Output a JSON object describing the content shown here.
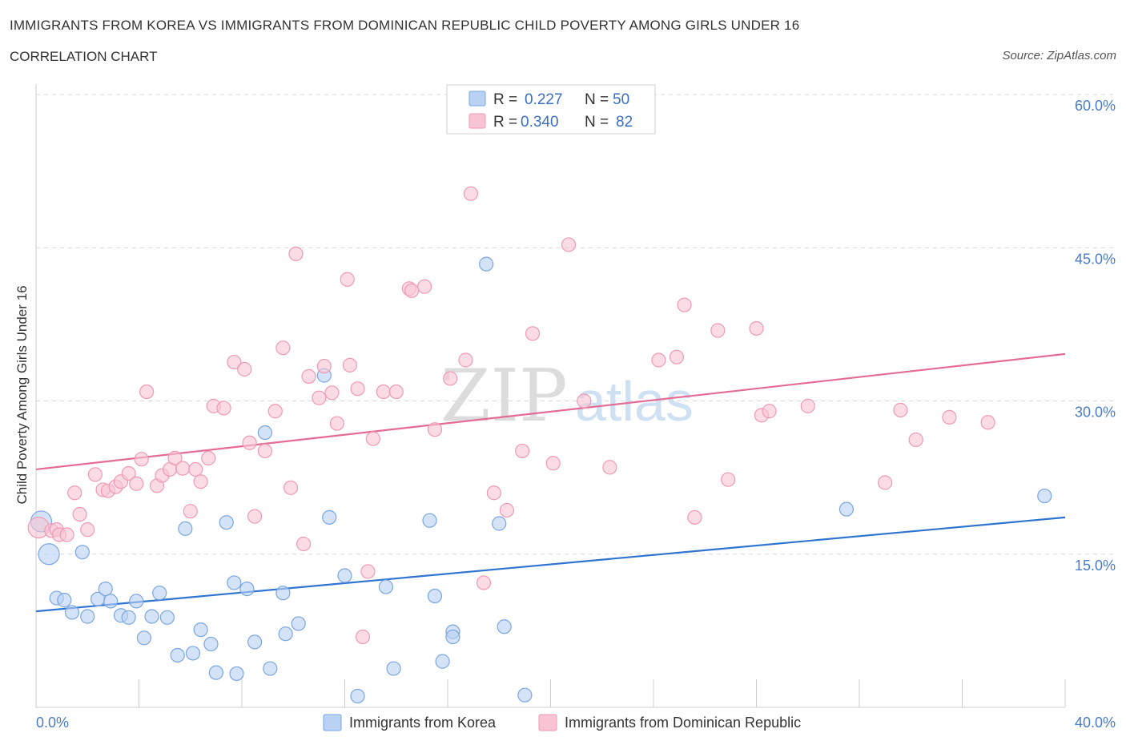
{
  "title": "IMMIGRANTS FROM KOREA VS IMMIGRANTS FROM DOMINICAN REPUBLIC CHILD POVERTY AMONG GIRLS UNDER 16",
  "subtitle": "CORRELATION CHART",
  "source": "Source: ZipAtlas.com",
  "watermark": {
    "zip": "ZIP",
    "atlas": "atlas"
  },
  "legend_top": {
    "r_label": "R =",
    "n_label": "N =",
    "series": [
      {
        "name": "Immigrants from Korea",
        "r": "0.227",
        "n": "50"
      },
      {
        "name": "Immigrants from Dominican Republic",
        "r": "0.340",
        "n": "82"
      }
    ]
  },
  "colors": {
    "korea_fill": "#b9d1f3",
    "korea_stroke": "#7aa6e0",
    "korea_line": "#2f74d0",
    "dr_fill": "#f8c4d3",
    "dr_stroke": "#ef9ab4",
    "dr_line": "#e46b96",
    "grid": "#d9d9d9",
    "axis_label": "#4a7cc7"
  },
  "chart_data": {
    "type": "scatter",
    "title": "IMMIGRANTS FROM KOREA VS IMMIGRANTS FROM DOMINICAN REPUBLIC CHILD POVERTY AMONG GIRLS UNDER 16",
    "ylabel": "Child Poverty Among Girls Under 16",
    "xlim": [
      0,
      40
    ],
    "ylim": [
      0,
      60
    ],
    "x_tick_labels": [
      "0.0%",
      "40.0%"
    ],
    "y_ticks": [
      {
        "value": 15,
        "label": "15.0%"
      },
      {
        "value": 30,
        "label": "30.0%"
      },
      {
        "value": 45,
        "label": "45.0%"
      },
      {
        "value": 60,
        "label": "60.0%"
      }
    ],
    "grid": true,
    "legend_position": "top-center",
    "series": [
      {
        "name": "Immigrants from Korea",
        "trend": {
          "x": [
            0,
            40
          ],
          "y": [
            9.4,
            18.6
          ]
        },
        "points": [
          {
            "x": 0.2,
            "y": 18.2,
            "big": true
          },
          {
            "x": 0.5,
            "y": 15.0,
            "big": true
          },
          {
            "x": 0.8,
            "y": 10.7
          },
          {
            "x": 1.1,
            "y": 10.5
          },
          {
            "x": 1.4,
            "y": 9.3
          },
          {
            "x": 1.8,
            "y": 15.2
          },
          {
            "x": 2.0,
            "y": 8.9
          },
          {
            "x": 2.4,
            "y": 10.6
          },
          {
            "x": 2.7,
            "y": 11.6
          },
          {
            "x": 2.9,
            "y": 10.4
          },
          {
            "x": 3.3,
            "y": 9.0
          },
          {
            "x": 3.6,
            "y": 8.8
          },
          {
            "x": 3.9,
            "y": 10.4
          },
          {
            "x": 4.2,
            "y": 6.8
          },
          {
            "x": 4.5,
            "y": 8.9
          },
          {
            "x": 4.8,
            "y": 11.2
          },
          {
            "x": 5.1,
            "y": 8.8
          },
          {
            "x": 5.5,
            "y": 5.1
          },
          {
            "x": 5.8,
            "y": 17.5
          },
          {
            "x": 6.1,
            "y": 5.3
          },
          {
            "x": 6.4,
            "y": 7.6
          },
          {
            "x": 6.8,
            "y": 6.2
          },
          {
            "x": 7.0,
            "y": 3.4
          },
          {
            "x": 7.4,
            "y": 18.1
          },
          {
            "x": 7.7,
            "y": 12.2
          },
          {
            "x": 7.8,
            "y": 3.3
          },
          {
            "x": 8.2,
            "y": 11.6
          },
          {
            "x": 8.5,
            "y": 6.4
          },
          {
            "x": 8.9,
            "y": 26.9
          },
          {
            "x": 9.1,
            "y": 3.8
          },
          {
            "x": 9.6,
            "y": 11.2
          },
          {
            "x": 9.7,
            "y": 7.2
          },
          {
            "x": 10.2,
            "y": 8.2
          },
          {
            "x": 11.2,
            "y": 32.5
          },
          {
            "x": 11.4,
            "y": 18.6
          },
          {
            "x": 12.0,
            "y": 12.9
          },
          {
            "x": 12.5,
            "y": 1.1
          },
          {
            "x": 13.6,
            "y": 11.8
          },
          {
            "x": 13.9,
            "y": 3.8
          },
          {
            "x": 15.3,
            "y": 18.3
          },
          {
            "x": 15.5,
            "y": 10.9
          },
          {
            "x": 15.8,
            "y": 4.5
          },
          {
            "x": 16.2,
            "y": 7.4
          },
          {
            "x": 16.2,
            "y": 6.9
          },
          {
            "x": 17.5,
            "y": 43.4
          },
          {
            "x": 18.0,
            "y": 18.0
          },
          {
            "x": 18.2,
            "y": 7.9
          },
          {
            "x": 19.0,
            "y": 1.2
          },
          {
            "x": 31.5,
            "y": 19.4
          },
          {
            "x": 39.2,
            "y": 20.7
          }
        ]
      },
      {
        "name": "Immigrants from Dominican Republic",
        "trend": {
          "x": [
            0,
            40
          ],
          "y": [
            23.3,
            34.6
          ]
        },
        "points": [
          {
            "x": 0.1,
            "y": 17.6,
            "big": true
          },
          {
            "x": 0.6,
            "y": 17.3
          },
          {
            "x": 0.8,
            "y": 17.4
          },
          {
            "x": 0.9,
            "y": 16.9
          },
          {
            "x": 1.2,
            "y": 16.9
          },
          {
            "x": 1.5,
            "y": 21.0
          },
          {
            "x": 1.7,
            "y": 18.9
          },
          {
            "x": 2.0,
            "y": 17.4
          },
          {
            "x": 2.3,
            "y": 22.8
          },
          {
            "x": 2.6,
            "y": 21.3
          },
          {
            "x": 2.8,
            "y": 21.2
          },
          {
            "x": 3.1,
            "y": 21.6
          },
          {
            "x": 3.3,
            "y": 22.1
          },
          {
            "x": 3.6,
            "y": 22.9
          },
          {
            "x": 3.9,
            "y": 21.9
          },
          {
            "x": 4.1,
            "y": 24.3
          },
          {
            "x": 4.3,
            "y": 30.9
          },
          {
            "x": 4.7,
            "y": 21.7
          },
          {
            "x": 4.9,
            "y": 22.7
          },
          {
            "x": 5.2,
            "y": 23.3
          },
          {
            "x": 5.4,
            "y": 24.4
          },
          {
            "x": 5.7,
            "y": 23.4
          },
          {
            "x": 6.0,
            "y": 19.2
          },
          {
            "x": 6.2,
            "y": 23.3
          },
          {
            "x": 6.4,
            "y": 22.1
          },
          {
            "x": 6.7,
            "y": 24.4
          },
          {
            "x": 6.9,
            "y": 29.5
          },
          {
            "x": 7.3,
            "y": 29.3
          },
          {
            "x": 7.7,
            "y": 33.8
          },
          {
            "x": 8.1,
            "y": 33.1
          },
          {
            "x": 8.3,
            "y": 25.9
          },
          {
            "x": 8.5,
            "y": 18.7
          },
          {
            "x": 8.9,
            "y": 25.1
          },
          {
            "x": 9.3,
            "y": 29.0
          },
          {
            "x": 9.6,
            "y": 35.2
          },
          {
            "x": 9.9,
            "y": 21.5
          },
          {
            "x": 10.1,
            "y": 44.4
          },
          {
            "x": 10.4,
            "y": 16.0
          },
          {
            "x": 10.6,
            "y": 32.4
          },
          {
            "x": 11.0,
            "y": 30.3
          },
          {
            "x": 11.2,
            "y": 33.4
          },
          {
            "x": 11.5,
            "y": 30.8
          },
          {
            "x": 11.7,
            "y": 27.8
          },
          {
            "x": 12.1,
            "y": 41.9
          },
          {
            "x": 12.2,
            "y": 33.5
          },
          {
            "x": 12.5,
            "y": 31.2
          },
          {
            "x": 12.7,
            "y": 6.9
          },
          {
            "x": 12.9,
            "y": 13.3
          },
          {
            "x": 13.1,
            "y": 26.3
          },
          {
            "x": 13.5,
            "y": 30.9
          },
          {
            "x": 14.0,
            "y": 30.9
          },
          {
            "x": 14.5,
            "y": 41.0
          },
          {
            "x": 14.6,
            "y": 40.8
          },
          {
            "x": 15.1,
            "y": 41.2
          },
          {
            "x": 15.5,
            "y": 27.2
          },
          {
            "x": 16.1,
            "y": 32.2
          },
          {
            "x": 16.7,
            "y": 34.0
          },
          {
            "x": 16.9,
            "y": 50.3
          },
          {
            "x": 17.4,
            "y": 12.2
          },
          {
            "x": 17.8,
            "y": 21.0
          },
          {
            "x": 18.3,
            "y": 19.3
          },
          {
            "x": 18.9,
            "y": 25.1
          },
          {
            "x": 19.3,
            "y": 36.6
          },
          {
            "x": 20.1,
            "y": 23.9
          },
          {
            "x": 20.7,
            "y": 45.3
          },
          {
            "x": 21.3,
            "y": 30.0
          },
          {
            "x": 22.3,
            "y": 23.5
          },
          {
            "x": 24.2,
            "y": 34.0
          },
          {
            "x": 24.9,
            "y": 34.3
          },
          {
            "x": 25.2,
            "y": 39.4
          },
          {
            "x": 25.6,
            "y": 18.6
          },
          {
            "x": 26.5,
            "y": 36.9
          },
          {
            "x": 26.9,
            "y": 22.3
          },
          {
            "x": 28.0,
            "y": 37.1
          },
          {
            "x": 28.2,
            "y": 28.6
          },
          {
            "x": 28.5,
            "y": 29.0
          },
          {
            "x": 30.0,
            "y": 29.5
          },
          {
            "x": 33.0,
            "y": 22.0
          },
          {
            "x": 33.6,
            "y": 29.1
          },
          {
            "x": 34.2,
            "y": 26.2
          },
          {
            "x": 35.5,
            "y": 28.4
          },
          {
            "x": 37.0,
            "y": 27.9
          }
        ]
      }
    ]
  }
}
